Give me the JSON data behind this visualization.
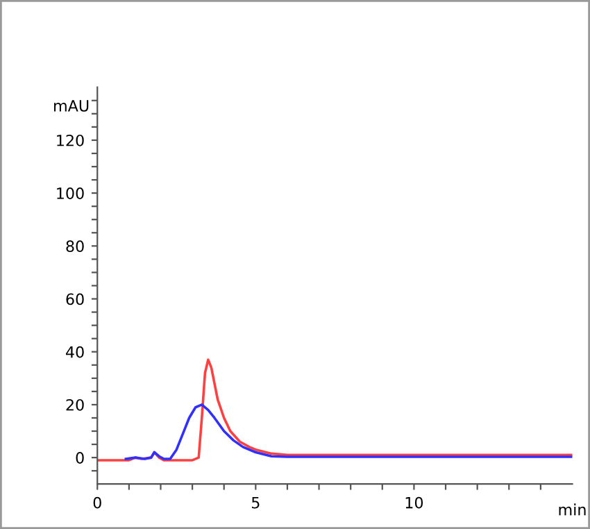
{
  "chart_data": {
    "type": "line",
    "xlabel": "min",
    "ylabel": "mAU",
    "xlim": [
      0,
      15
    ],
    "ylim": [
      -10,
      140
    ],
    "xticks": [
      0,
      {
        "value": 1,
        "label": null
      },
      {
        "value": 2,
        "label": null
      },
      {
        "value": 3,
        "label": null
      },
      {
        "value": 4,
        "label": null
      },
      5,
      {
        "value": 6,
        "label": null
      },
      {
        "value": 7,
        "label": null
      },
      {
        "value": 8,
        "label": null
      },
      {
        "value": 9,
        "label": null
      },
      10,
      {
        "value": 11,
        "label": null
      },
      {
        "value": 12,
        "label": null
      },
      {
        "value": 13,
        "label": null
      },
      {
        "value": 14,
        "label": null
      }
    ],
    "yticks": [
      {
        "value": -5,
        "label": null
      },
      0,
      {
        "value": 5,
        "label": null
      },
      {
        "value": 10,
        "label": null
      },
      {
        "value": 15,
        "label": null
      },
      20,
      {
        "value": 25,
        "label": null
      },
      {
        "value": 30,
        "label": null
      },
      {
        "value": 35,
        "label": null
      },
      40,
      {
        "value": 45,
        "label": null
      },
      {
        "value": 50,
        "label": null
      },
      {
        "value": 55,
        "label": null
      },
      60,
      {
        "value": 65,
        "label": null
      },
      {
        "value": 70,
        "label": null
      },
      {
        "value": 75,
        "label": null
      },
      80,
      {
        "value": 85,
        "label": null
      },
      {
        "value": 90,
        "label": null
      },
      {
        "value": 95,
        "label": null
      },
      100,
      {
        "value": 105,
        "label": null
      },
      {
        "value": 110,
        "label": null
      },
      {
        "value": 115,
        "label": null
      },
      120,
      {
        "value": 125,
        "label": null
      },
      {
        "value": 130,
        "label": null
      },
      {
        "value": 135,
        "label": null
      }
    ],
    "grid": false,
    "legend": false,
    "marker": "none",
    "line_style": "solid",
    "series": [
      {
        "color": "#ff4040",
        "x": [
          0,
          1.0,
          1.2,
          1.4,
          1.7,
          1.8,
          1.95,
          2.1,
          2.5,
          3.0,
          3.2,
          3.3,
          3.4,
          3.5,
          3.6,
          3.8,
          4.0,
          4.2,
          4.5,
          4.8,
          5.0,
          5.5,
          6,
          8,
          10,
          15
        ],
        "values": [
          -1,
          -1,
          0,
          -0.5,
          0,
          2,
          0,
          -1,
          -1,
          -1,
          0,
          15,
          32,
          37,
          34,
          22,
          15,
          10,
          6,
          4,
          3,
          1.5,
          1,
          1,
          1,
          1
        ]
      },
      {
        "color": "#3030ff",
        "x": [
          0.9,
          1.2,
          1.5,
          1.7,
          1.8,
          1.95,
          2.1,
          2.3,
          2.5,
          2.7,
          2.9,
          3.1,
          3.3,
          3.5,
          3.7,
          4.0,
          4.3,
          4.6,
          5.0,
          5.5,
          6,
          8,
          10,
          15
        ],
        "values": [
          -0.5,
          0,
          -0.5,
          0,
          2,
          0.5,
          -0.5,
          -0.5,
          3,
          9,
          15,
          19,
          20,
          18,
          15,
          10,
          6.5,
          4,
          2,
          0.5,
          0.3,
          0.3,
          0.3,
          0.3
        ]
      }
    ]
  }
}
